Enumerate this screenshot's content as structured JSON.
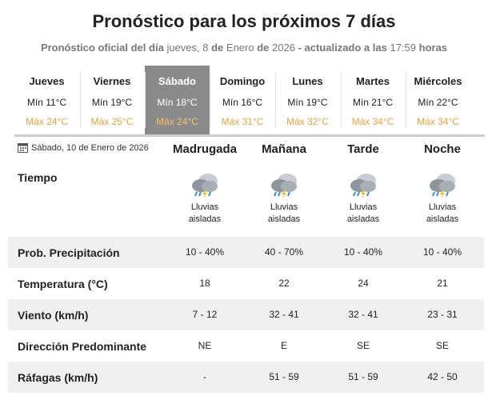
{
  "header": {
    "title": "Pronóstico para los próximos 7 días",
    "subtitle": [
      "Pronóstico oficial del día",
      "jueves, 8",
      "de",
      "Enero",
      "de",
      "2026",
      "- actualizado a las",
      "17:59",
      "horas"
    ]
  },
  "days": [
    {
      "name": "Jueves",
      "min": "Mín 11°C",
      "max": "Máx 24°C"
    },
    {
      "name": "Viernes",
      "min": "Mín 19°C",
      "max": "Máx 25°C"
    },
    {
      "name": "Sábado",
      "min": "Mín 18°C",
      "max": "Máx 24°C"
    },
    {
      "name": "Domingo",
      "min": "Mín 16°C",
      "max": "Máx 31°C"
    },
    {
      "name": "Lunes",
      "min": "Mín 19°C",
      "max": "Máx 32°C"
    },
    {
      "name": "Martes",
      "min": "Mín 21°C",
      "max": "Máx 34°C"
    },
    {
      "name": "Miércoles",
      "min": "Mín 22°C",
      "max": "Máx 34°C"
    }
  ],
  "selected_day": 2,
  "detail": {
    "date": "Sábado, 10 de Enero de 2026",
    "periods": [
      "Madrugada",
      "Mañana",
      "Tarde",
      "Noche"
    ],
    "weather_label": "Tiempo",
    "conditions": [
      "Lluvias aisladas",
      "Lluvias aisladas",
      "Lluvias aisladas",
      "Lluvias aisladas"
    ],
    "rows": [
      {
        "label": "Prob. Precipitación",
        "values": [
          "10 - 40%",
          "40 - 70%",
          "10 - 40%",
          "10 - 40%"
        ]
      },
      {
        "label": "Temperatura (°C)",
        "values": [
          "18",
          "22",
          "24",
          "21"
        ]
      },
      {
        "label": "Viento (km/h)",
        "values": [
          "7 - 12",
          "32 - 41",
          "32 - 41",
          "23 - 31"
        ]
      },
      {
        "label": "Dirección Predominante",
        "values": [
          "NE",
          "E",
          "SE",
          "SE"
        ]
      },
      {
        "label": "Ráfagas (km/h)",
        "values": [
          "-",
          "51 - 59",
          "51 - 59",
          "42 - 50"
        ]
      }
    ]
  }
}
